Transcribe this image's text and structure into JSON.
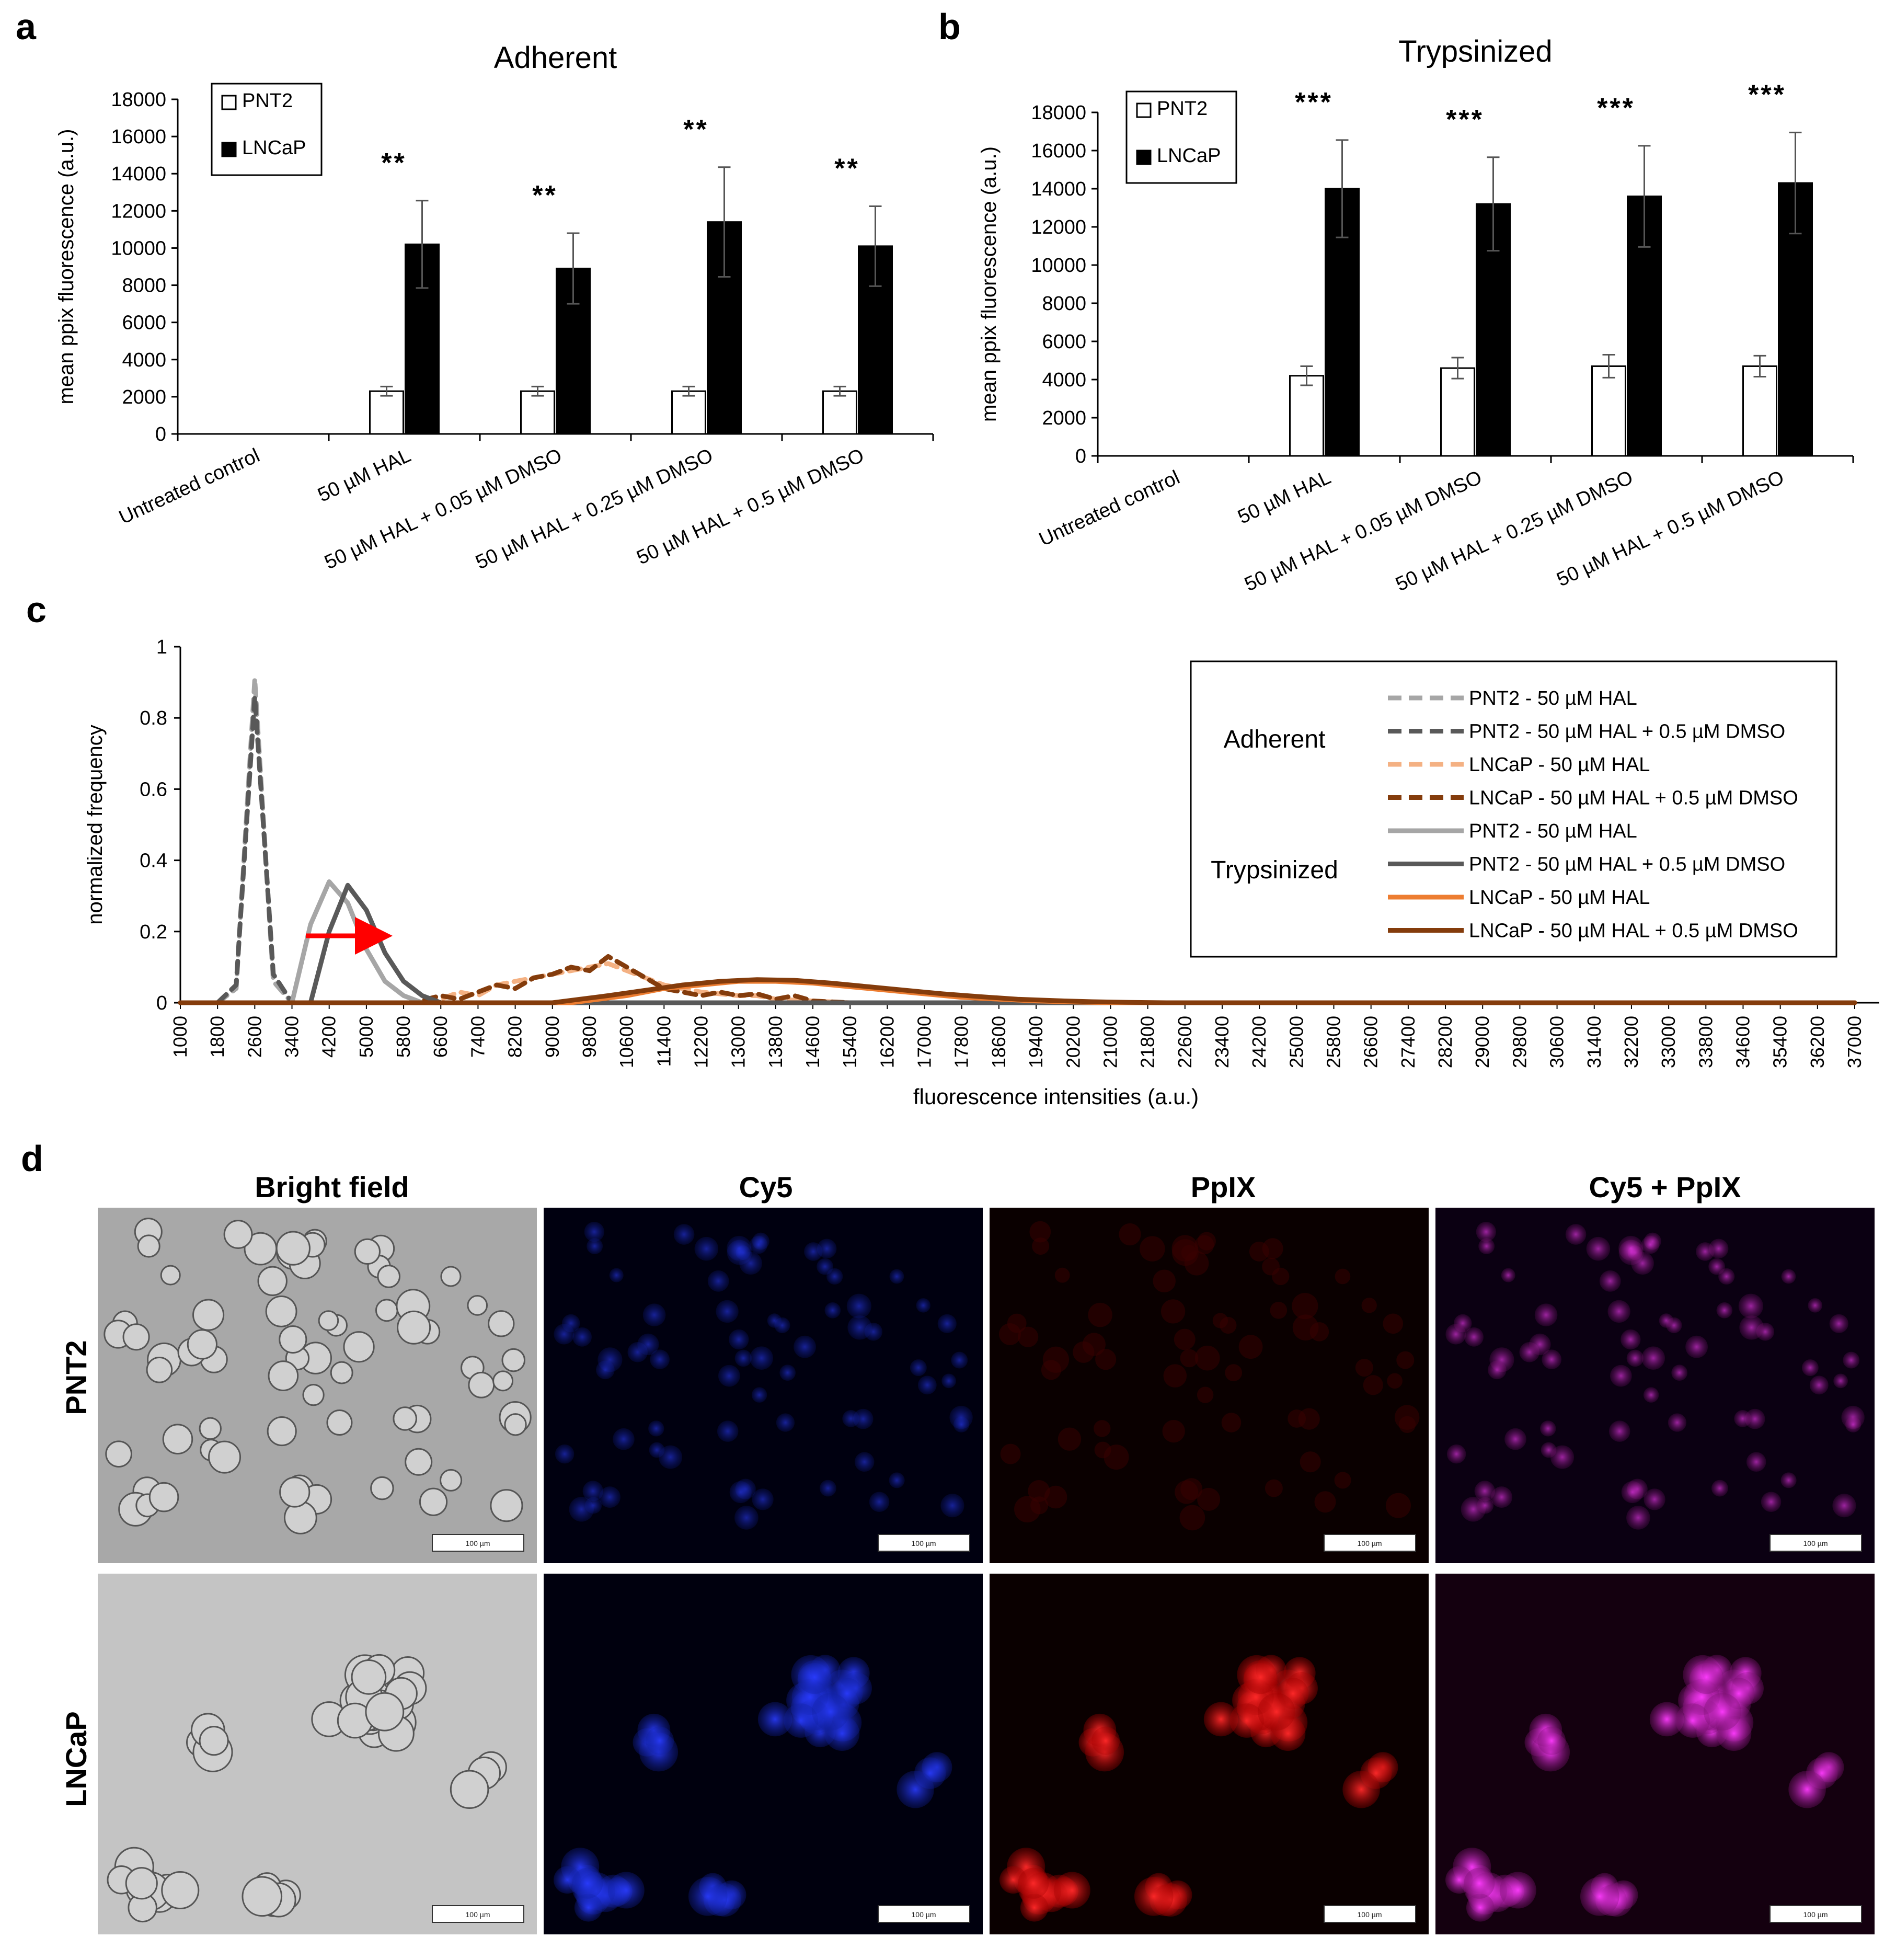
{
  "panel_labels": {
    "a": "a",
    "b": "b",
    "c": "c",
    "d": "d"
  },
  "chart_data": [
    {
      "type": "bar",
      "panel": "a",
      "title": "Adherent",
      "ylabel": "mean ppix fluorescence (a.u.)",
      "ylim": [
        0,
        18000
      ],
      "yticks": [
        0,
        2000,
        4000,
        6000,
        8000,
        10000,
        12000,
        14000,
        16000,
        18000
      ],
      "categories": [
        "Untreated control",
        "50 µM HAL",
        "50 µM HAL + 0.05 µM DMSO",
        "50 µM HAL + 0.25 µM DMSO",
        "50 µM HAL + 0.5 µM DMSO"
      ],
      "series": [
        {
          "name": "PNT2",
          "color": "#ffffff",
          "values": [
            0,
            2300,
            2300,
            2300,
            2300
          ],
          "errors": [
            0,
            250,
            250,
            250,
            250
          ]
        },
        {
          "name": "LNCaP",
          "color": "#000000",
          "values": [
            0,
            10200,
            8900,
            11400,
            10100
          ],
          "errors": [
            0,
            2350,
            1900,
            2950,
            2150
          ]
        }
      ],
      "annotations": [
        "",
        "**",
        "**",
        "**",
        "**"
      ],
      "legend": "top-left"
    },
    {
      "type": "bar",
      "panel": "b",
      "title": "Trypsinized",
      "ylabel": "mean ppix fluorescence (a.u.)",
      "ylim": [
        0,
        18000
      ],
      "yticks": [
        0,
        2000,
        4000,
        6000,
        8000,
        10000,
        12000,
        14000,
        16000,
        18000
      ],
      "categories": [
        "Untreated control",
        "50 µM HAL",
        "50 µM HAL + 0.05 µM DMSO",
        "50 µM HAL + 0.25 µM DMSO",
        "50 µM HAL + 0.5 µM DMSO"
      ],
      "series": [
        {
          "name": "PNT2",
          "color": "#ffffff",
          "values": [
            0,
            4200,
            4600,
            4700,
            4700
          ],
          "errors": [
            0,
            500,
            550,
            600,
            550
          ]
        },
        {
          "name": "LNCaP",
          "color": "#000000",
          "values": [
            0,
            14000,
            13200,
            13600,
            14300
          ],
          "errors": [
            0,
            2550,
            2450,
            2650,
            2650
          ]
        }
      ],
      "annotations": [
        "",
        "***",
        "***",
        "***",
        "***"
      ],
      "legend": "top-left"
    },
    {
      "type": "line",
      "panel": "c",
      "xlabel": "fluorescence intensities (a.u.)",
      "ylabel": "normalized frequency",
      "ylim": [
        0,
        1
      ],
      "yticks": [
        "0",
        "0.2",
        "0.4",
        "0.6",
        "0.8",
        "1"
      ],
      "xticks": [
        "1000",
        "1800",
        "2600",
        "3400",
        "4200",
        "5000",
        "5800",
        "6600",
        "7400",
        "8200",
        "9000",
        "9800",
        "10600",
        "11400",
        "12200",
        "13000",
        "13800",
        "14600",
        "15400",
        "16200",
        "17000",
        "17800",
        "18600",
        "19400",
        "20200",
        "21000",
        "21800",
        "22600",
        "23400",
        "24200",
        "25000",
        "25800",
        "26600",
        "27400",
        "28200",
        "29000",
        "29800",
        "30600",
        "31400",
        "32200",
        "33000",
        "33800",
        "34600",
        "35400",
        "36200",
        "37000"
      ],
      "legend": "right",
      "legend_groups": [
        {
          "label": "Adherent",
          "series": [
            0,
            1,
            2,
            3
          ]
        },
        {
          "label": "Trypsinized",
          "series": [
            4,
            5,
            6,
            7
          ]
        }
      ],
      "series": [
        {
          "name": "PNT2 - 50 µM HAL",
          "color": "#a6a6a6",
          "dash": true,
          "points": [
            [
              1000,
              0
            ],
            [
              1800,
              0
            ],
            [
              2200,
              0.04
            ],
            [
              2600,
              0.91
            ],
            [
              3000,
              0.06
            ],
            [
              3400,
              0
            ],
            [
              37000,
              0
            ]
          ]
        },
        {
          "name": "PNT2 -  50 µM HAL + 0.5 µM DMSO",
          "color": "#595959",
          "dash": true,
          "points": [
            [
              1000,
              0
            ],
            [
              1800,
              0
            ],
            [
              2200,
              0.05
            ],
            [
              2600,
              0.86
            ],
            [
              3000,
              0.08
            ],
            [
              3400,
              0
            ],
            [
              37000,
              0
            ]
          ]
        },
        {
          "name": "LNCaP - 50 µM HAL",
          "color": "#f4b183",
          "dash": true,
          "points": [
            [
              1000,
              0
            ],
            [
              6200,
              0
            ],
            [
              6600,
              0.01
            ],
            [
              7000,
              0.03
            ],
            [
              7400,
              0.02
            ],
            [
              7800,
              0.05
            ],
            [
              8200,
              0.06
            ],
            [
              8600,
              0.07
            ],
            [
              9000,
              0.08
            ],
            [
              9400,
              0.09
            ],
            [
              9800,
              0.1
            ],
            [
              10200,
              0.11
            ],
            [
              10600,
              0.09
            ],
            [
              11000,
              0.07
            ],
            [
              11400,
              0.05
            ],
            [
              11800,
              0.04
            ],
            [
              12200,
              0.03
            ],
            [
              12600,
              0.025
            ],
            [
              13000,
              0.02
            ],
            [
              13400,
              0.02
            ],
            [
              13800,
              0.01
            ],
            [
              14600,
              0.005
            ],
            [
              15400,
              0
            ],
            [
              37000,
              0
            ]
          ]
        },
        {
          "name": "LNCaP - 50 µM HAL + 0.5 µM DMSO",
          "color": "#843c0c",
          "dash": true,
          "points": [
            [
              1000,
              0
            ],
            [
              6000,
              0
            ],
            [
              6600,
              0.02
            ],
            [
              7000,
              0.01
            ],
            [
              7400,
              0.03
            ],
            [
              7800,
              0.05
            ],
            [
              8200,
              0.04
            ],
            [
              8600,
              0.07
            ],
            [
              9000,
              0.08
            ],
            [
              9400,
              0.1
            ],
            [
              9800,
              0.09
            ],
            [
              10200,
              0.13
            ],
            [
              10600,
              0.1
            ],
            [
              11000,
              0.07
            ],
            [
              11400,
              0.04
            ],
            [
              11800,
              0.03
            ],
            [
              12200,
              0.02
            ],
            [
              12600,
              0.03
            ],
            [
              13000,
              0.02
            ],
            [
              13400,
              0.025
            ],
            [
              13800,
              0.01
            ],
            [
              14200,
              0.02
            ],
            [
              14600,
              0.005
            ],
            [
              15400,
              0
            ],
            [
              37000,
              0
            ]
          ]
        },
        {
          "name": "PNT2 - 50 µM HAL",
          "color": "#a6a6a6",
          "dash": false,
          "points": [
            [
              1000,
              0
            ],
            [
              3400,
              0
            ],
            [
              3800,
              0.22
            ],
            [
              4200,
              0.34
            ],
            [
              4600,
              0.28
            ],
            [
              5000,
              0.15
            ],
            [
              5400,
              0.06
            ],
            [
              5800,
              0.02
            ],
            [
              6200,
              0
            ],
            [
              37000,
              0
            ]
          ]
        },
        {
          "name": "PNT2 - 50 µM HAL + 0.5 µM DMSO",
          "color": "#595959",
          "dash": false,
          "points": [
            [
              1000,
              0
            ],
            [
              3800,
              0
            ],
            [
              4200,
              0.2
            ],
            [
              4600,
              0.33
            ],
            [
              5000,
              0.26
            ],
            [
              5400,
              0.14
            ],
            [
              5800,
              0.06
            ],
            [
              6200,
              0.02
            ],
            [
              6600,
              0
            ],
            [
              37000,
              0
            ]
          ]
        },
        {
          "name": "LNCaP - 50 µM HAL",
          "color": "#ed7d31",
          "dash": false,
          "points": [
            [
              1000,
              0
            ],
            [
              9400,
              0
            ],
            [
              10600,
              0.02
            ],
            [
              11400,
              0.04
            ],
            [
              12200,
              0.05
            ],
            [
              13000,
              0.06
            ],
            [
              13800,
              0.06
            ],
            [
              14600,
              0.055
            ],
            [
              15400,
              0.045
            ],
            [
              16200,
              0.035
            ],
            [
              17000,
              0.025
            ],
            [
              17800,
              0.015
            ],
            [
              18600,
              0.01
            ],
            [
              19400,
              0.005
            ],
            [
              20200,
              0.002
            ],
            [
              21000,
              0
            ],
            [
              37000,
              0
            ]
          ]
        },
        {
          "name": "LNCaP - 50 µM HAL + 0.5 µM DMSO",
          "color": "#843c0c",
          "dash": false,
          "points": [
            [
              1000,
              0
            ],
            [
              9000,
              0
            ],
            [
              10200,
              0.02
            ],
            [
              11000,
              0.035
            ],
            [
              11800,
              0.05
            ],
            [
              12600,
              0.06
            ],
            [
              13400,
              0.065
            ],
            [
              14200,
              0.063
            ],
            [
              15000,
              0.055
            ],
            [
              15800,
              0.045
            ],
            [
              16600,
              0.035
            ],
            [
              17400,
              0.025
            ],
            [
              18200,
              0.017
            ],
            [
              19000,
              0.01
            ],
            [
              19800,
              0.006
            ],
            [
              20600,
              0.003
            ],
            [
              21400,
              0.001
            ],
            [
              22200,
              0
            ],
            [
              37000,
              0
            ]
          ]
        }
      ]
    }
  ],
  "micrographs": {
    "columns": [
      "Bright field",
      "Cy5",
      "PpIX",
      "Cy5 + PpIX"
    ],
    "rows": [
      "PNT2",
      "LNCaP"
    ],
    "scale_bar": "100 µm"
  }
}
